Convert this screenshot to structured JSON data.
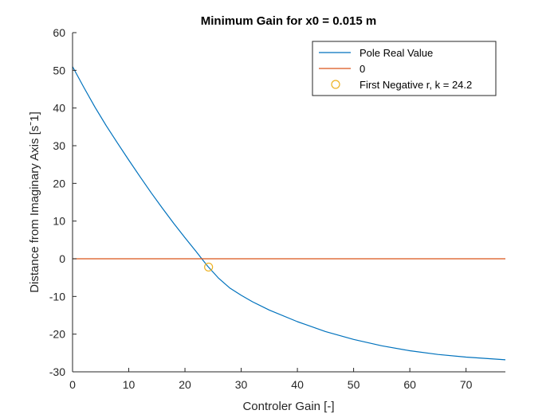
{
  "chart_data": {
    "type": "line",
    "title": "Minimum Gain for x0 = 0.015 m",
    "xlabel": "Controler Gain [-]",
    "ylabel": "Distance from Imaginary Axis [s^-1]",
    "ylabel_display": "Distance from Imaginary Axis [sˉ1]",
    "xlim": [
      0,
      77
    ],
    "ylim": [
      -30,
      60
    ],
    "xticks": [
      0,
      10,
      20,
      30,
      40,
      50,
      60,
      70
    ],
    "yticks": [
      -30,
      -20,
      -10,
      0,
      10,
      20,
      30,
      40,
      50,
      60
    ],
    "grid": false,
    "legend_position": "top-right",
    "series": [
      {
        "name": "Pole Real Value",
        "kind": "line",
        "color": "#0072BD",
        "x": [
          0,
          2,
          4,
          6,
          8,
          10,
          12,
          14,
          16,
          18,
          20,
          22,
          24,
          26,
          28,
          30,
          32,
          35,
          40,
          45,
          50,
          55,
          60,
          65,
          70,
          77
        ],
        "y": [
          51,
          45.5,
          40.2,
          35.3,
          30.7,
          26.2,
          21.8,
          17.5,
          13.4,
          9.4,
          5.6,
          1.9,
          -1.9,
          -5.2,
          -7.8,
          -9.7,
          -11.4,
          -13.6,
          -16.7,
          -19.3,
          -21.4,
          -23.1,
          -24.4,
          -25.4,
          -26.1,
          -26.8
        ]
      },
      {
        "name": "0",
        "kind": "line",
        "color": "#D95319",
        "x": [
          0,
          77
        ],
        "y": [
          0,
          0
        ]
      },
      {
        "name": "First Negative r, k = 24.2",
        "kind": "marker",
        "marker": "circle",
        "color": "#EDB120",
        "x": [
          24.2
        ],
        "y": [
          -2.2
        ]
      }
    ]
  }
}
